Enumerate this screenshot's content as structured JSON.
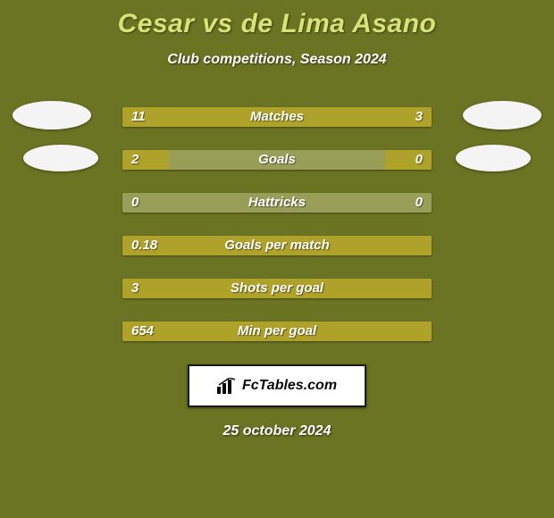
{
  "background_color": "#6b7423",
  "title": {
    "text": "Cesar vs de Lima Asano",
    "color": "#d9e276",
    "fontsize": 30
  },
  "subtitle": "Club competitions, Season 2024",
  "date": "25 october 2024",
  "bar_bg_color": "#989e58",
  "left_fill_color": "#aea22a",
  "right_fill_color": "#aea22a",
  "rows": [
    {
      "label": "Matches",
      "left_val": "11",
      "right_val": "3",
      "left_pct": 75,
      "right_pct": 25
    },
    {
      "label": "Goals",
      "left_val": "2",
      "right_val": "0",
      "left_pct": 15,
      "right_pct": 15
    },
    {
      "label": "Hattricks",
      "left_val": "0",
      "right_val": "0",
      "left_pct": 0,
      "right_pct": 0
    },
    {
      "label": "Goals per match",
      "left_val": "0.18",
      "right_val": "",
      "left_pct": 100,
      "right_pct": 0
    },
    {
      "label": "Shots per goal",
      "left_val": "3",
      "right_val": "",
      "left_pct": 100,
      "right_pct": 0
    },
    {
      "label": "Min per goal",
      "left_val": "654",
      "right_val": "",
      "left_pct": 100,
      "right_pct": 0
    }
  ],
  "avatars": [
    {
      "side": "left",
      "row": 0
    },
    {
      "side": "right",
      "row": 0
    },
    {
      "side": "left",
      "row": 1
    },
    {
      "side": "right",
      "row": 1
    }
  ],
  "badge": {
    "text": "FcTables.com",
    "icon": "chart-icon"
  }
}
